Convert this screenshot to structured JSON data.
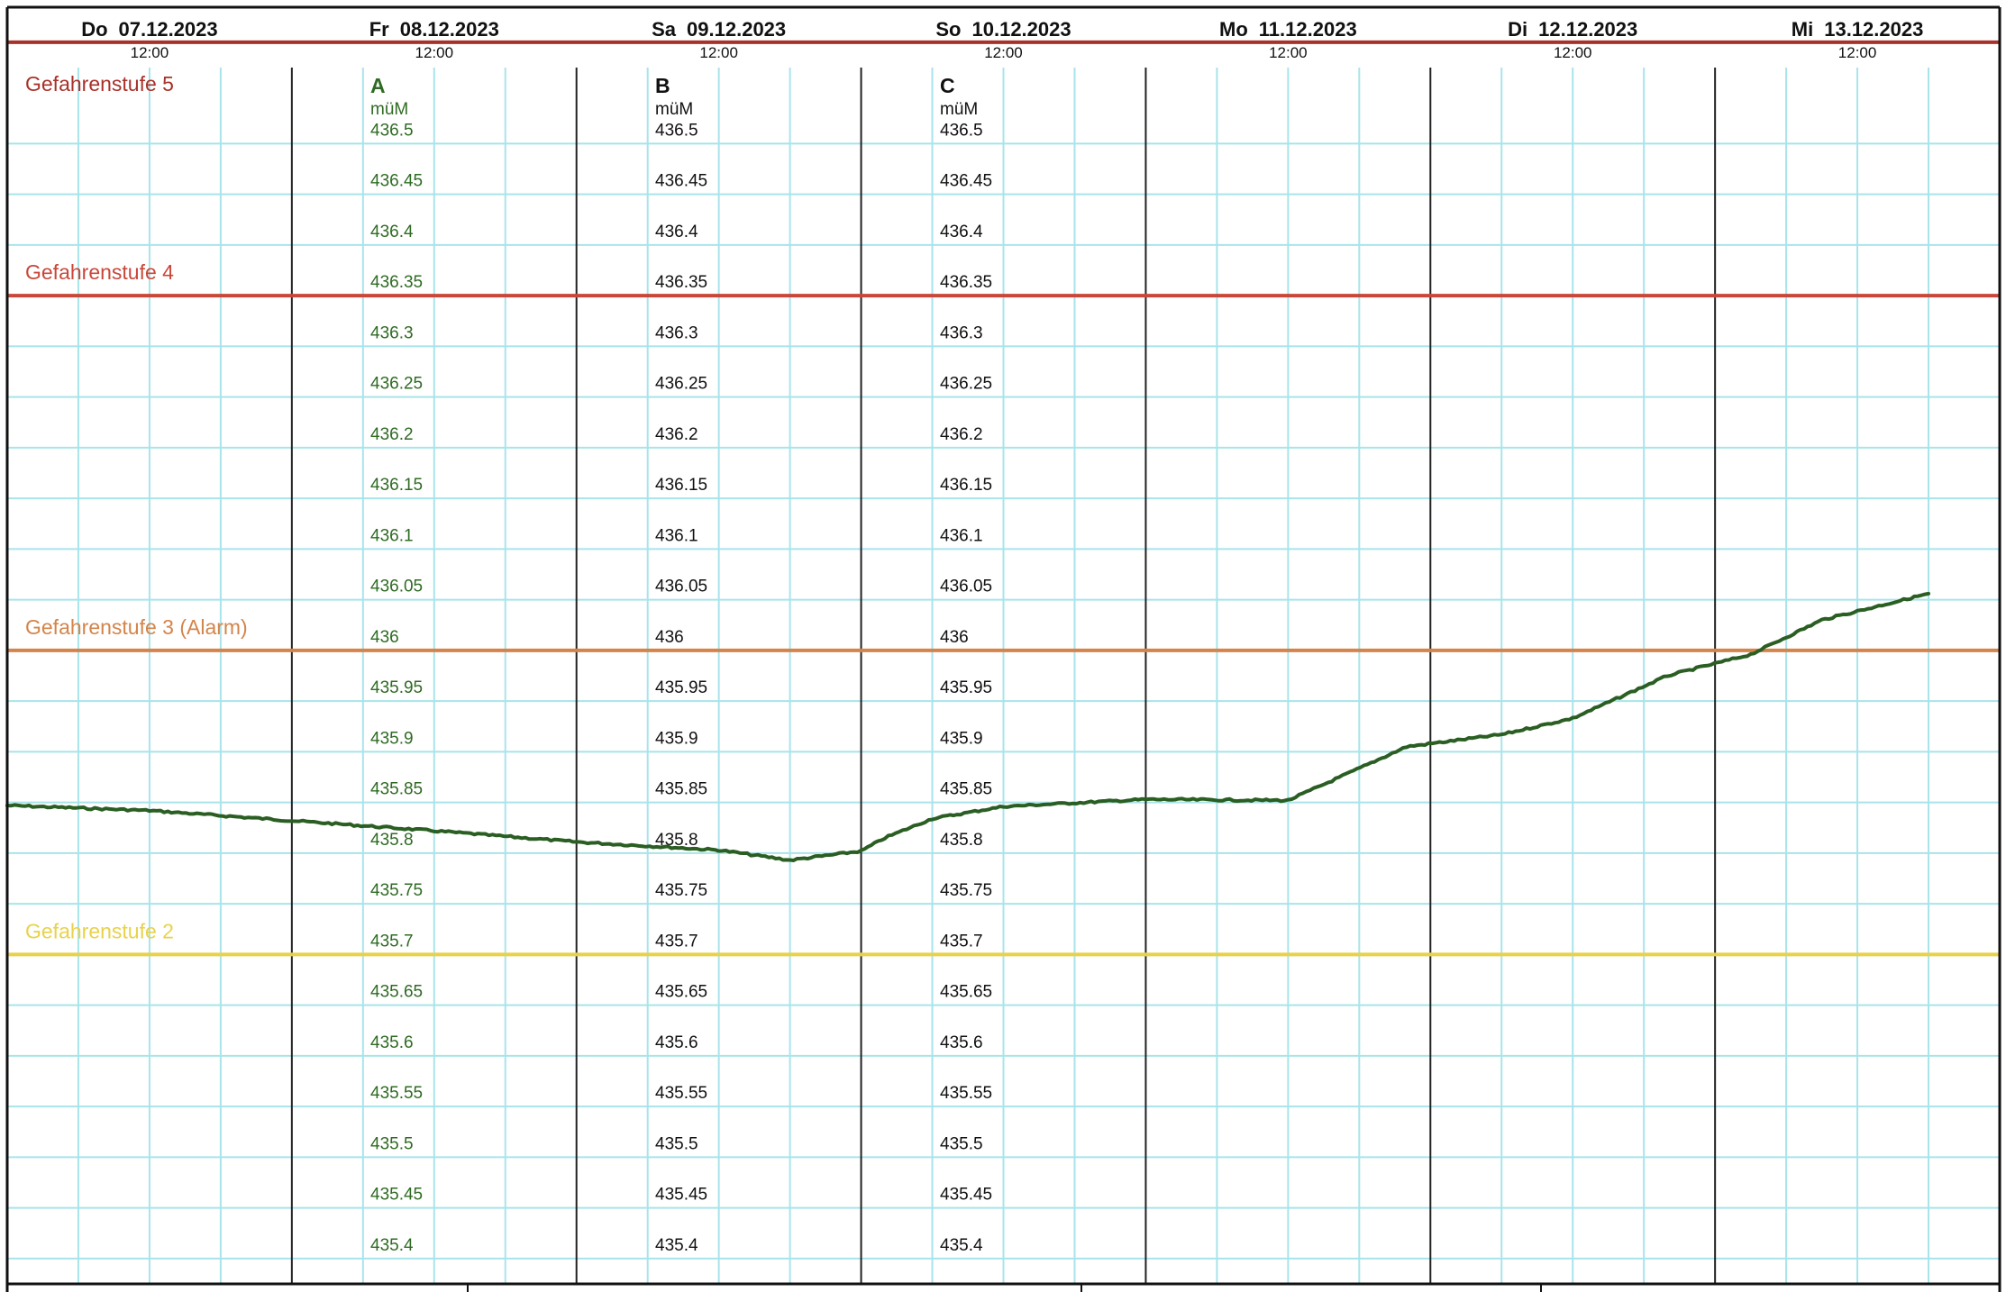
{
  "chart_data": {
    "type": "line",
    "x_header": [
      {
        "day": "Do",
        "date": "07.12.2023",
        "time": "12:00"
      },
      {
        "day": "Fr",
        "date": "08.12.2023",
        "time": "12:00"
      },
      {
        "day": "Sa",
        "date": "09.12.2023",
        "time": "12:00"
      },
      {
        "day": "So",
        "date": "10.12.2023",
        "time": "12:00"
      },
      {
        "day": "Mo",
        "date": "11.12.2023",
        "time": "12:00"
      },
      {
        "day": "Di",
        "date": "12.12.2023",
        "time": "12:00"
      },
      {
        "day": "Mi",
        "date": "13.12.2023",
        "time": "12:00"
      }
    ],
    "xlim": [
      "2023-12-07 00:00",
      "2023-12-14 00:00"
    ],
    "ylim": [
      435.375,
      436.575
    ],
    "y_ticks": [
      436.5,
      436.45,
      436.4,
      436.35,
      436.3,
      436.25,
      436.2,
      436.15,
      436.1,
      436.05,
      436,
      435.95,
      435.9,
      435.85,
      435.8,
      435.75,
      435.7,
      435.65,
      435.6,
      435.55,
      435.5,
      435.45,
      435.4
    ],
    "y_tick_labels": [
      "436.5",
      "436.45",
      "436.4",
      "436.35",
      "436.3",
      "436.25",
      "436.2",
      "436.15",
      "436.1",
      "436.05",
      "436",
      "435.95",
      "435.9",
      "435.85",
      "435.8",
      "435.75",
      "435.7",
      "435.65",
      "435.6",
      "435.55",
      "435.5",
      "435.45",
      "435.4"
    ],
    "y_axes": [
      {
        "name": "A",
        "unit": "müM",
        "color": "#2f6b23"
      },
      {
        "name": "B",
        "unit": "müM",
        "color": "#111111"
      },
      {
        "name": "C",
        "unit": "müM",
        "color": "#111111"
      }
    ],
    "thresholds": [
      {
        "label": "Gefahrenstufe 5",
        "value": 436.6,
        "color": "#a8322a"
      },
      {
        "label": "Gefahrenstufe 4",
        "value": 436.35,
        "color": "#c9473a"
      },
      {
        "label": "Gefahrenstufe 3 (Alarm)",
        "value": 436.0,
        "color": "#d4844a"
      },
      {
        "label": "Gefahrenstufe 2",
        "value": 435.7,
        "color": "#e8d24a"
      }
    ],
    "series": [
      {
        "color": "#2a5e22",
        "points": [
          [
            "2023-12-07 00:00",
            435.847
          ],
          [
            "2023-12-07 12:00",
            435.842
          ],
          [
            "2023-12-08 00:00",
            435.832
          ],
          [
            "2023-12-08 12:00",
            435.822
          ],
          [
            "2023-12-09 00:00",
            435.811
          ],
          [
            "2023-12-09 12:00",
            435.803
          ],
          [
            "2023-12-09 18:00",
            435.793
          ],
          [
            "2023-12-10 00:00",
            435.802
          ],
          [
            "2023-12-10 02:00",
            435.815
          ],
          [
            "2023-12-10 06:00",
            435.834
          ],
          [
            "2023-12-10 12:00",
            435.846
          ],
          [
            "2023-12-11 00:00",
            435.853
          ],
          [
            "2023-12-11 12:00",
            435.852
          ],
          [
            "2023-12-11 16:00",
            435.873
          ],
          [
            "2023-12-11 22:00",
            435.905
          ],
          [
            "2023-12-12 06:00",
            435.917
          ],
          [
            "2023-12-12 12:00",
            435.933
          ],
          [
            "2023-12-12 20:00",
            435.975
          ],
          [
            "2023-12-13 03:00",
            435.996
          ],
          [
            "2023-12-13 09:00",
            436.03
          ],
          [
            "2023-12-13 18:00",
            436.056
          ]
        ]
      }
    ]
  }
}
